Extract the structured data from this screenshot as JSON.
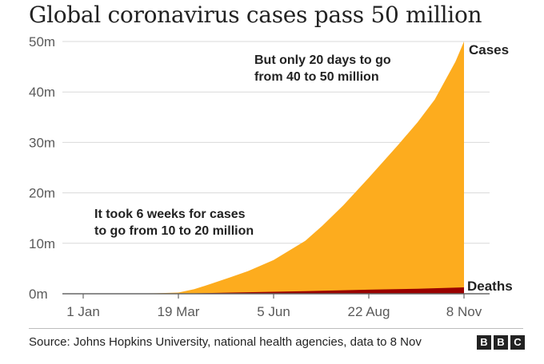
{
  "title": "Global coronavirus cases pass 50 million",
  "source": "Source: Johns Hopkins University, national health agencies, data to 8 Nov",
  "logo": [
    "B",
    "B",
    "C"
  ],
  "colors": {
    "cases": "#fdac1e",
    "deaths": "#990000",
    "grid": "#d9d9d9",
    "axis": "#666666"
  },
  "chart_data": {
    "type": "area",
    "title": "Global coronavirus cases pass 50 million",
    "x_ticks": [
      "1 Jan",
      "19 Mar",
      "5 Jun",
      "22 Aug",
      "8 Nov"
    ],
    "y_ticks": [
      "0m",
      "10m",
      "20m",
      "30m",
      "40m",
      "50m"
    ],
    "ylim": [
      0,
      50
    ],
    "y_unit": "million",
    "grid": "horizontal",
    "series": [
      {
        "name": "Cases",
        "x": [
          "1 Jan",
          "1 Feb",
          "1 Mar",
          "19 Mar",
          "1 Apr",
          "15 Apr",
          "1 May",
          "15 May",
          "5 Jun",
          "1 Jul",
          "15 Jul",
          "1 Aug",
          "22 Aug",
          "15 Sep",
          "1 Oct",
          "15 Oct",
          "1 Nov",
          "8 Nov"
        ],
        "values": [
          0.0,
          0.01,
          0.09,
          0.24,
          0.9,
          2.0,
          3.3,
          4.5,
          6.7,
          10.5,
          13.5,
          17.5,
          23.0,
          29.5,
          34.0,
          38.5,
          46.0,
          50.0
        ]
      },
      {
        "name": "Deaths",
        "x": [
          "1 Jan",
          "19 Mar",
          "1 May",
          "5 Jun",
          "1 Jul",
          "22 Aug",
          "1 Oct",
          "8 Nov"
        ],
        "values": [
          0.0,
          0.01,
          0.24,
          0.4,
          0.51,
          0.8,
          1.0,
          1.26
        ]
      }
    ],
    "annotations": [
      [
        "It took 6 weeks for cases",
        "to go from 10 to 20 million"
      ],
      [
        "But only 20 days to go",
        "from 40 to 50 million"
      ]
    ]
  }
}
